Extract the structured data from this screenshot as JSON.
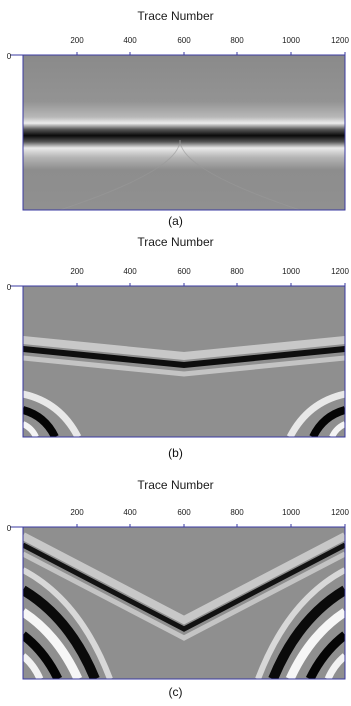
{
  "panels": [
    {
      "title": "Trace Number",
      "caption": "(a)",
      "origin_label": "0",
      "ticks": [
        "200",
        "400",
        "600",
        "800",
        "1000",
        "1200"
      ]
    },
    {
      "title": "Trace Number",
      "caption": "(b)",
      "origin_label": "0",
      "ticks": [
        "200",
        "400",
        "600",
        "800",
        "1000",
        "1200"
      ]
    },
    {
      "title": "Trace Number",
      "caption": "(c)",
      "origin_label": "0",
      "ticks": [
        "200",
        "400",
        "600",
        "800",
        "1000",
        "1200"
      ]
    }
  ],
  "colors": {
    "axis": "#3a3aa0",
    "background": "#8c8c8c"
  }
}
